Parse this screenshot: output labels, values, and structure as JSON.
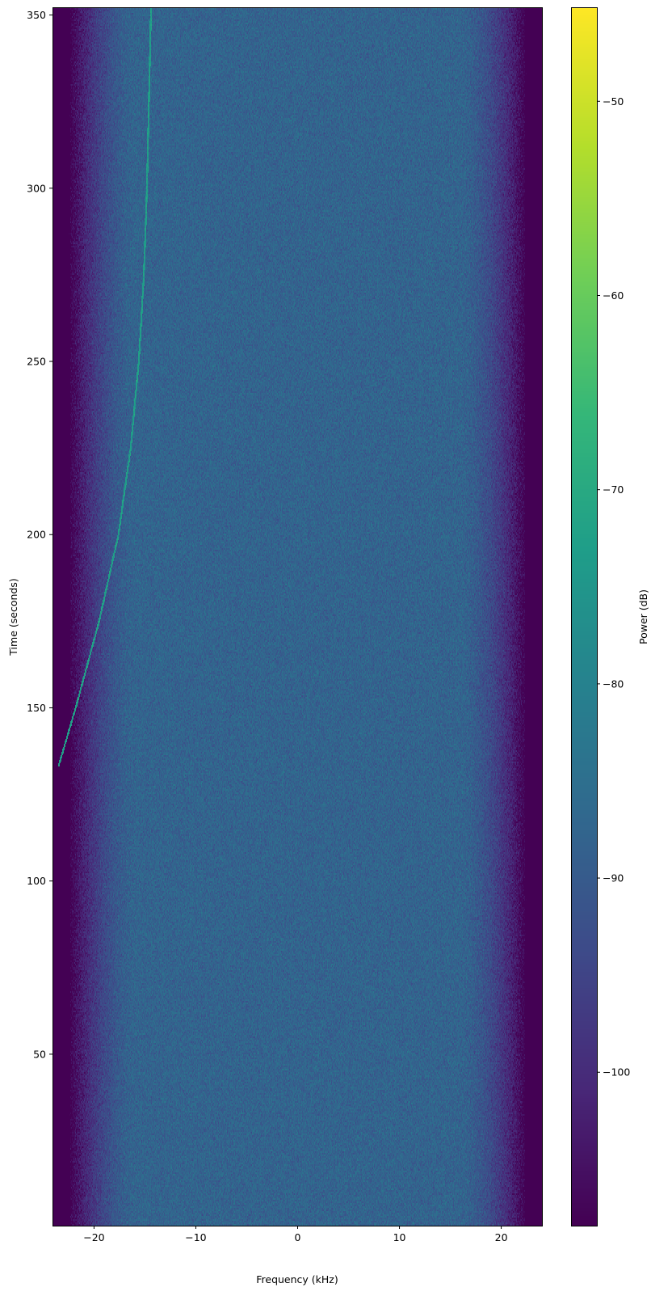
{
  "chart_data": {
    "type": "heatmap",
    "subtype": "spectrogram",
    "title": "",
    "xlabel": "Frequency (kHz)",
    "ylabel": "Time (seconds)",
    "xlim": [
      -24,
      24
    ],
    "ylim": [
      0.5,
      352
    ],
    "xticks": [
      -20,
      -10,
      0,
      10,
      20
    ],
    "xtick_labels": [
      "−20",
      "−10",
      "0",
      "10",
      "20"
    ],
    "yticks": [
      50,
      100,
      150,
      200,
      250,
      300,
      350
    ],
    "ytick_labels": [
      "50",
      "100",
      "150",
      "200",
      "250",
      "300",
      "350"
    ],
    "colormap": "viridis",
    "colorbar": {
      "label": "Power (dB)",
      "range": [
        -107.9,
        -45.2
      ],
      "ticks": [
        -100,
        -90,
        -80,
        -70,
        -60,
        -50
      ],
      "tick_labels": [
        "−100",
        "−90",
        "−80",
        "−70",
        "−60",
        "−50"
      ]
    },
    "noise_floor_db": -88,
    "band_edge_db": -108,
    "passband_khz": [
      -21,
      21
    ],
    "signal_trace": {
      "power_db": -73,
      "points": [
        {
          "time": 133,
          "freq": -23.5
        },
        {
          "time": 150,
          "freq": -21.8
        },
        {
          "time": 175,
          "freq": -19.5
        },
        {
          "time": 200,
          "freq": -17.6
        },
        {
          "time": 225,
          "freq": -16.4
        },
        {
          "time": 250,
          "freq": -15.6
        },
        {
          "time": 275,
          "freq": -15.1
        },
        {
          "time": 300,
          "freq": -14.8
        },
        {
          "time": 352,
          "freq": -14.4
        }
      ]
    },
    "grid": false
  }
}
